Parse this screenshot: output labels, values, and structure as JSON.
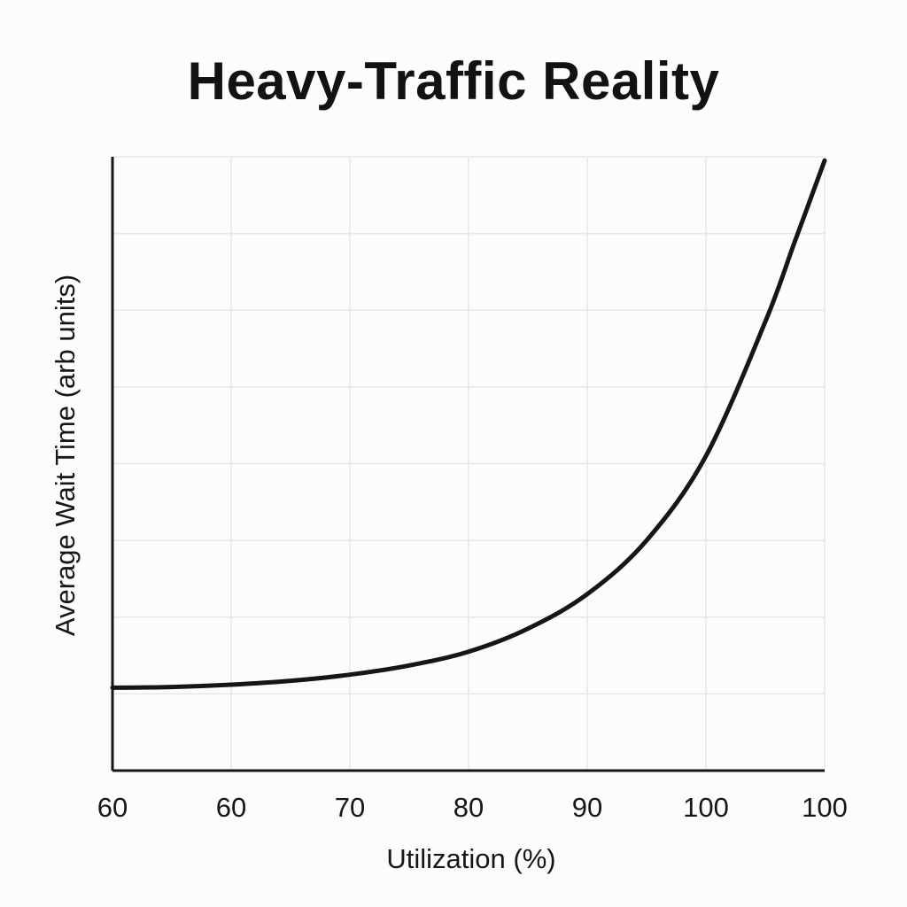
{
  "chart_data": {
    "type": "line",
    "title": "Heavy-Traffic Reality",
    "xlabel": "Utilization (%)",
    "ylabel": "Average Wait Time (arb units)",
    "x_tick_labels": [
      "60",
      "60",
      "70",
      "80",
      "90",
      "100",
      "100"
    ],
    "grid": true,
    "legend": "none",
    "xlim": [
      0,
      6
    ],
    "ylim": [
      0,
      8
    ],
    "series": [
      {
        "values_x": [
          0,
          0.5,
          1,
          1.5,
          2,
          2.5,
          3,
          3.5,
          4,
          4.5,
          5,
          5.5,
          5.75,
          6
        ],
        "values_y": [
          1.08,
          1.09,
          1.12,
          1.17,
          1.25,
          1.37,
          1.55,
          1.85,
          2.3,
          3.0,
          4.1,
          5.85,
          6.9,
          7.95
        ]
      }
    ]
  }
}
